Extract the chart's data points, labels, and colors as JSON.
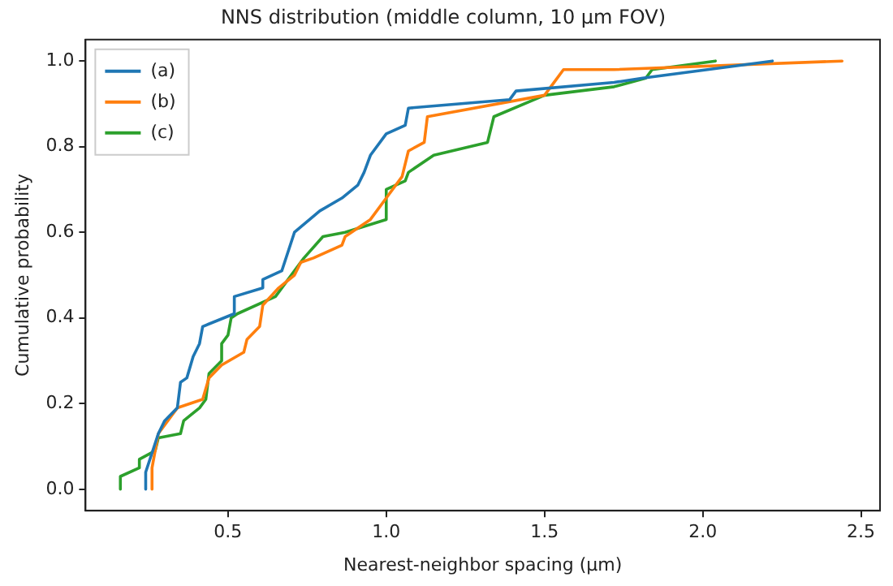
{
  "chart_data": {
    "type": "line",
    "title": "NNS distribution (middle column, 10 μm FOV)",
    "xlabel": "Nearest-neighbor spacing (μm)",
    "ylabel": "Cumulative probability",
    "xlim": [
      0.05,
      2.56
    ],
    "xticks": [
      {
        "value": 0.5,
        "label": "0.5"
      },
      {
        "value": 1,
        "label": "1.0"
      },
      {
        "value": 1.5,
        "label": "1.5"
      },
      {
        "value": 2,
        "label": "2.0"
      },
      {
        "value": 2.5,
        "label": "2.5"
      }
    ],
    "ylim": [
      -0.05,
      1.05
    ],
    "yticks": [
      {
        "value": 0,
        "label": "0.0"
      },
      {
        "value": 0.2,
        "label": "0.2"
      },
      {
        "value": 0.4,
        "label": "0.4"
      },
      {
        "value": 0.6,
        "label": "0.6"
      },
      {
        "value": 0.8,
        "label": "0.8"
      },
      {
        "value": 1,
        "label": "1.0"
      }
    ],
    "grid": false,
    "legend": "top left",
    "marker": "none",
    "line_style": "solid",
    "series": [
      {
        "name": "(a)",
        "color": "#1f77b4",
        "x": [
          0.24,
          0.24,
          0.28,
          0.3,
          0.34,
          0.35,
          0.37,
          0.39,
          0.41,
          0.42,
          0.52,
          0.52,
          0.61,
          0.61,
          0.67,
          0.71,
          0.79,
          0.86,
          0.91,
          0.93,
          0.95,
          1.0,
          1.06,
          1.07,
          1.39,
          1.41,
          1.72,
          1.81,
          2.22
        ],
        "values": [
          0,
          0.04,
          0.13,
          0.16,
          0.19,
          0.25,
          0.26,
          0.31,
          0.34,
          0.38,
          0.41,
          0.45,
          0.47,
          0.49,
          0.51,
          0.6,
          0.65,
          0.68,
          0.71,
          0.74,
          0.78,
          0.83,
          0.85,
          0.89,
          0.91,
          0.93,
          0.95,
          0.96,
          1.0
        ]
      },
      {
        "name": "(b)",
        "color": "#ff7f0e",
        "x": [
          0.26,
          0.26,
          0.28,
          0.34,
          0.42,
          0.44,
          0.48,
          0.55,
          0.56,
          0.6,
          0.61,
          0.66,
          0.71,
          0.73,
          0.77,
          0.86,
          0.87,
          0.95,
          1.0,
          1.05,
          1.07,
          1.12,
          1.13,
          1.5,
          1.53,
          1.56,
          1.72,
          2.44
        ],
        "values": [
          0,
          0.05,
          0.13,
          0.19,
          0.21,
          0.26,
          0.29,
          0.32,
          0.35,
          0.38,
          0.43,
          0.47,
          0.5,
          0.53,
          0.54,
          0.57,
          0.59,
          0.63,
          0.68,
          0.73,
          0.79,
          0.81,
          0.87,
          0.92,
          0.95,
          0.98,
          0.98,
          1.0
        ]
      },
      {
        "name": "(c)",
        "color": "#2ca02c",
        "x": [
          0.16,
          0.16,
          0.22,
          0.22,
          0.27,
          0.28,
          0.35,
          0.36,
          0.41,
          0.43,
          0.44,
          0.48,
          0.48,
          0.5,
          0.51,
          0.53,
          0.65,
          0.74,
          0.8,
          0.87,
          1.0,
          1.0,
          1.06,
          1.07,
          1.15,
          1.32,
          1.34,
          1.5,
          1.72,
          1.82,
          1.84,
          2.04
        ],
        "values": [
          0,
          0.03,
          0.05,
          0.07,
          0.09,
          0.12,
          0.13,
          0.16,
          0.19,
          0.21,
          0.27,
          0.3,
          0.34,
          0.36,
          0.4,
          0.41,
          0.45,
          0.54,
          0.59,
          0.6,
          0.63,
          0.7,
          0.72,
          0.74,
          0.78,
          0.81,
          0.87,
          0.92,
          0.94,
          0.96,
          0.98,
          1.0
        ]
      }
    ]
  }
}
